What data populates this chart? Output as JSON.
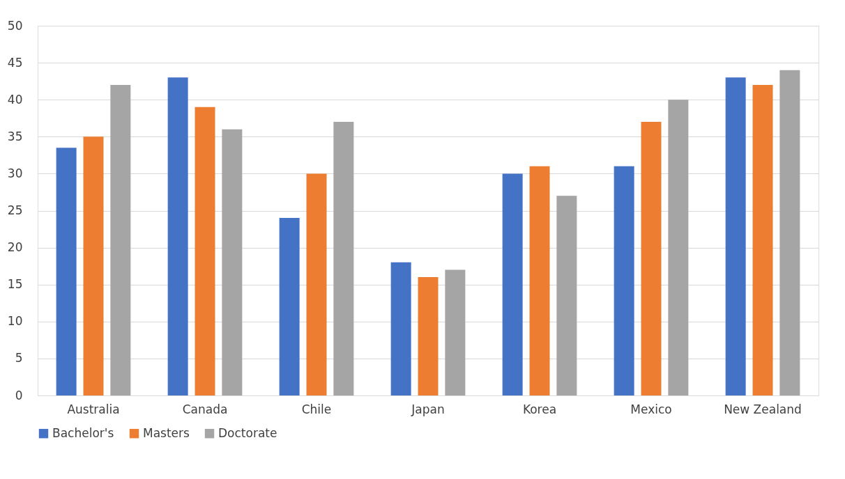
{
  "chart_data": {
    "type": "bar",
    "categories": [
      "Australia",
      "Canada",
      "Chile",
      "Japan",
      "Korea",
      "Mexico",
      "New Zealand"
    ],
    "series": [
      {
        "name": "Bachelor's",
        "color": "#4472c4",
        "values": [
          33.5,
          43,
          24,
          18,
          30,
          31,
          43
        ]
      },
      {
        "name": "Masters",
        "color": "#ed7d31",
        "values": [
          35,
          39,
          30,
          16,
          31,
          37,
          42
        ]
      },
      {
        "name": "Doctorate",
        "color": "#a5a5a5",
        "values": [
          42,
          36,
          37,
          17,
          27,
          40,
          44
        ]
      }
    ],
    "ylim": [
      0,
      50
    ],
    "yticks": [
      0,
      5,
      10,
      15,
      20,
      25,
      30,
      35,
      40,
      45,
      50
    ],
    "grid": "y",
    "legend": "bottom"
  }
}
